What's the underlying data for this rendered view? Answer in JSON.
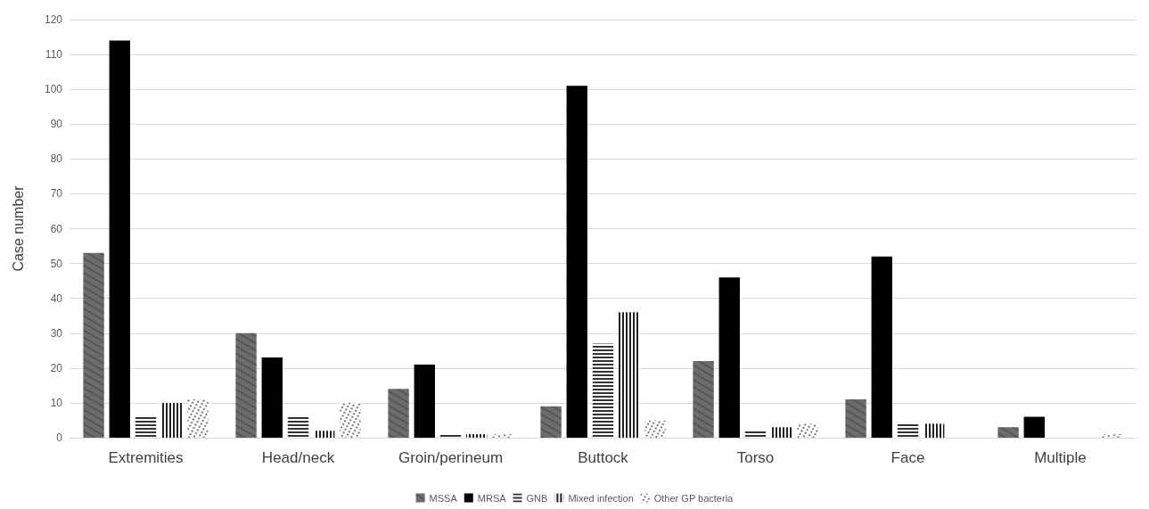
{
  "chart_data": {
    "type": "bar",
    "ylabel": "Case number",
    "categories": [
      "Extremities",
      "Head/neck",
      "Groin/perineum",
      "Buttock",
      "Torso",
      "Face",
      "Multiple"
    ],
    "series": [
      {
        "name": "MSSA",
        "color": "#6d6d6d",
        "values": [
          53,
          30,
          14,
          9,
          22,
          11,
          3
        ]
      },
      {
        "name": "MRSA",
        "color": "#000000",
        "values": [
          114,
          23,
          21,
          101,
          46,
          52,
          6
        ]
      },
      {
        "name": "GNB",
        "color": "#333333",
        "values": [
          6,
          6,
          1,
          27,
          2,
          4,
          0
        ]
      },
      {
        "name": "Mixed infection",
        "color": "#222222",
        "values": [
          10,
          2,
          1,
          36,
          3,
          4,
          0
        ]
      },
      {
        "name": "Other GP bacteria",
        "color": "#444444",
        "values": [
          11,
          10,
          1,
          5,
          4,
          0,
          1
        ]
      }
    ],
    "ylim": [
      0,
      120
    ],
    "yticks": [
      0,
      10,
      20,
      30,
      40,
      50,
      60,
      70,
      80,
      90,
      100,
      110,
      120
    ],
    "grid": "y",
    "legend": "bottom"
  }
}
